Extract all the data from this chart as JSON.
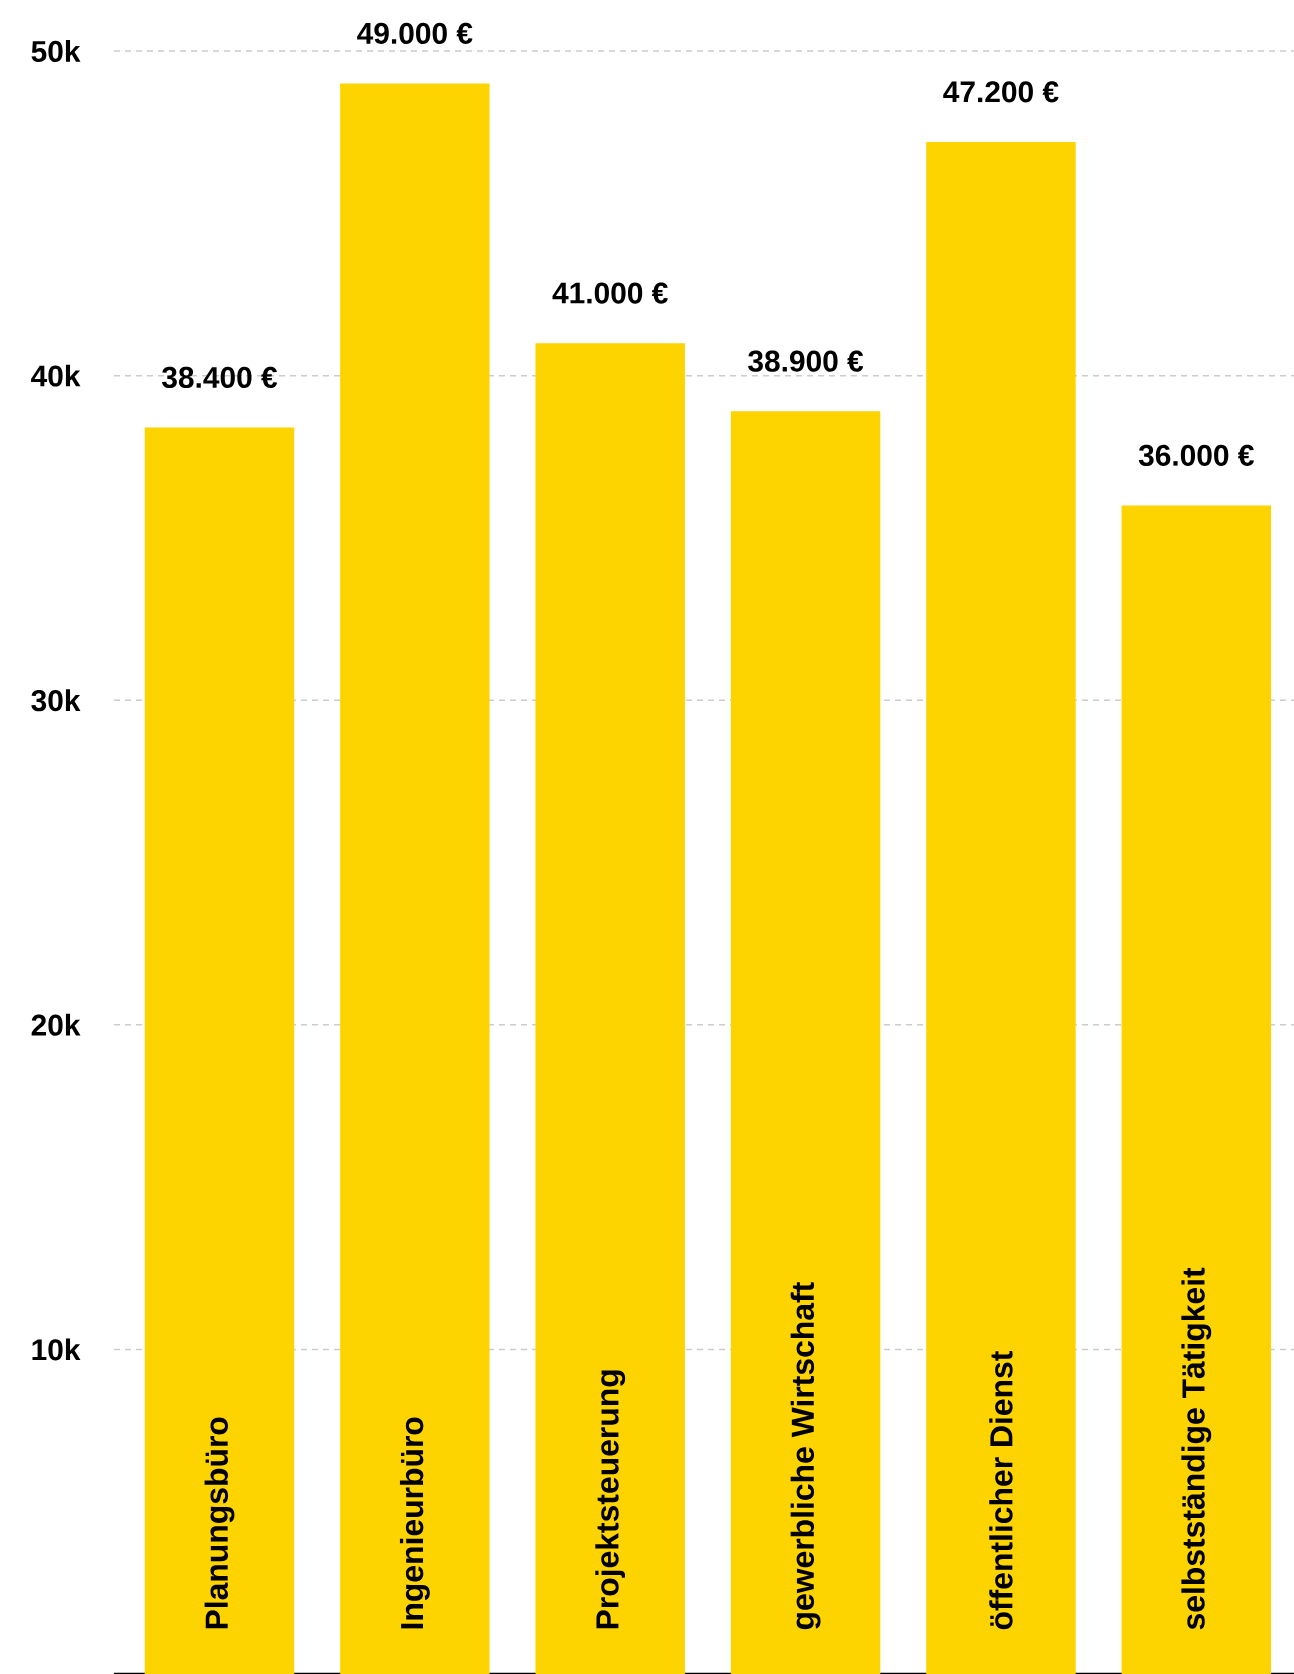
{
  "chart_data": {
    "type": "bar",
    "categories": [
      "Planungsbüro",
      "Ingenieurbüro",
      "Projektsteuerung",
      "gewerbliche Wirtschaft",
      "öffentlicher Dienst",
      "selbstständige Tätigkeit"
    ],
    "values": [
      38400,
      49000,
      41000,
      38900,
      47200,
      36000
    ],
    "value_labels": [
      "38.400 €",
      "49.000 €",
      "41.000 €",
      "38.900 €",
      "47.200 €",
      "36.000 €"
    ],
    "color": "#fdd300",
    "ylim": [
      0,
      50000
    ],
    "yticks": [
      {
        "value": 10000,
        "label": "10k"
      },
      {
        "value": 20000,
        "label": "20k"
      },
      {
        "value": 30000,
        "label": "30k"
      },
      {
        "value": 40000,
        "label": "40k"
      },
      {
        "value": 50000,
        "label": "50k"
      }
    ],
    "grid": "y"
  }
}
